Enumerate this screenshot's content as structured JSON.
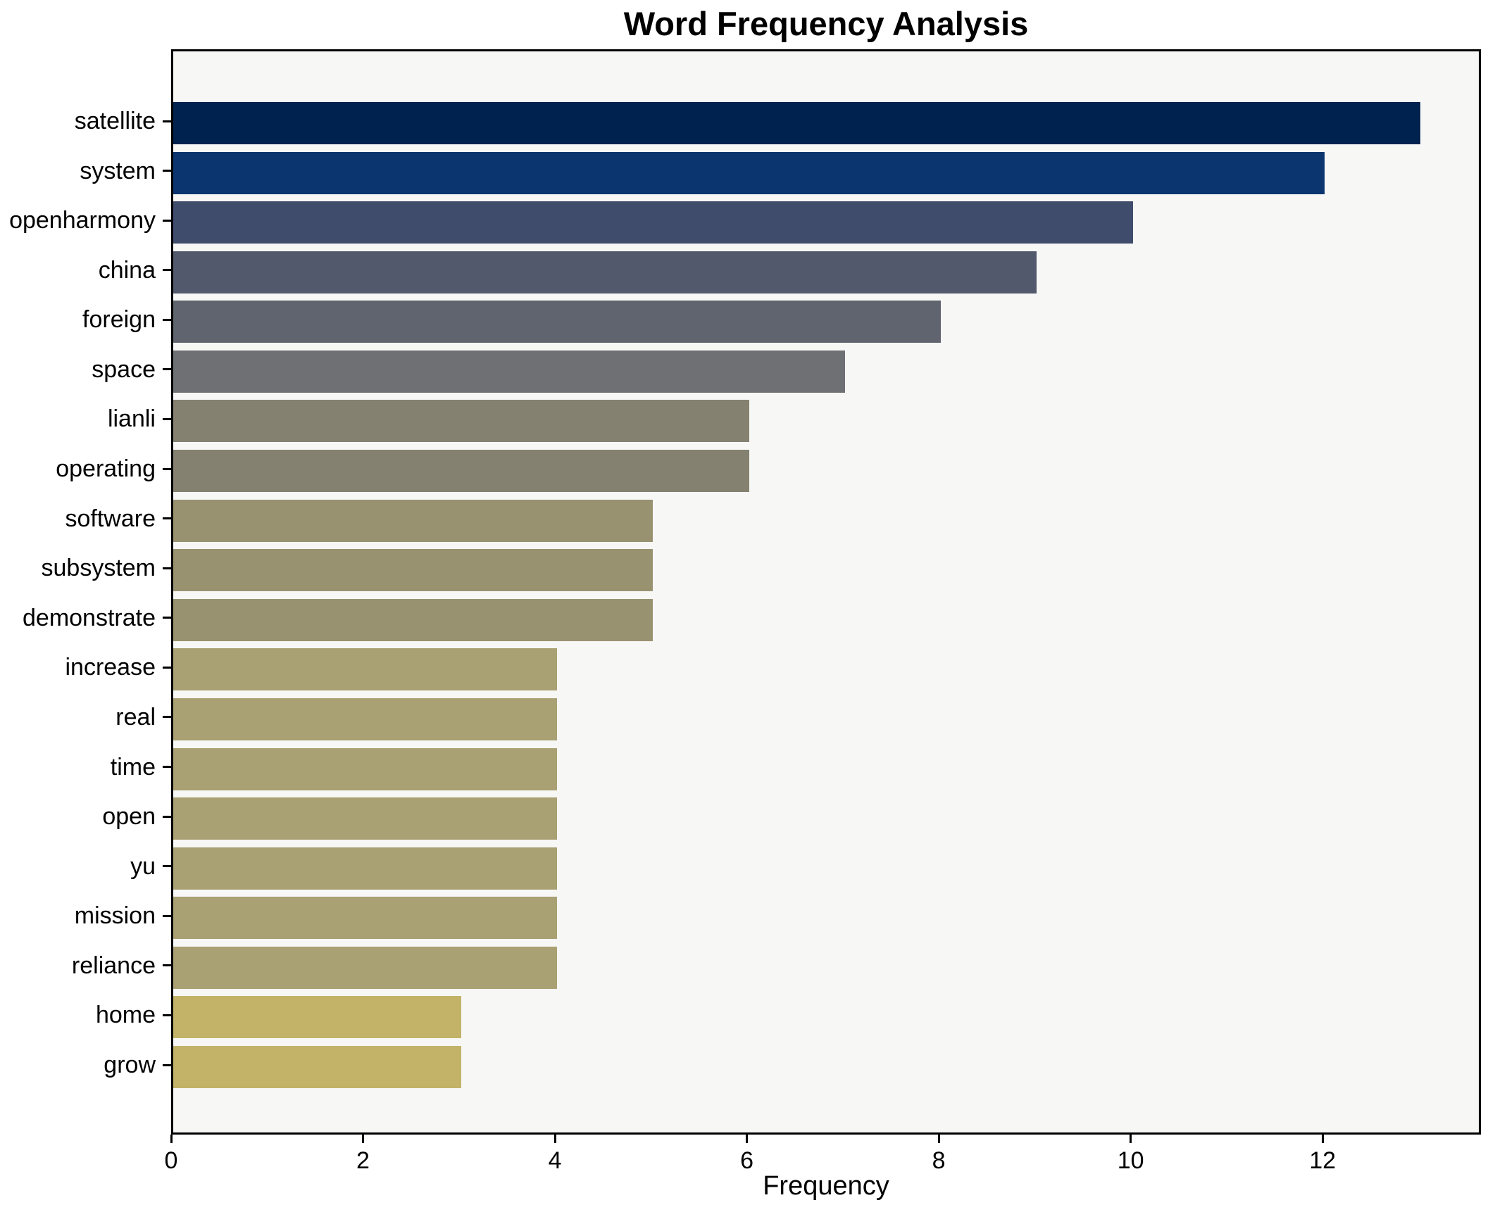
{
  "title": "Word Frequency Analysis",
  "chart_data": {
    "type": "bar",
    "orientation": "horizontal",
    "title": "Word Frequency Analysis",
    "xlabel": "Frequency",
    "ylabel": "",
    "categories": [
      "satellite",
      "system",
      "openharmony",
      "china",
      "foreign",
      "space",
      "lianli",
      "operating",
      "software",
      "subsystem",
      "demonstrate",
      "increase",
      "real",
      "time",
      "open",
      "yu",
      "mission",
      "reliance",
      "home",
      "grow"
    ],
    "values": [
      13,
      12,
      10,
      9,
      8,
      7,
      6,
      6,
      5,
      5,
      5,
      4,
      4,
      4,
      4,
      4,
      4,
      4,
      3,
      3
    ],
    "bar_colors": [
      "#00224e",
      "#0b356f",
      "#3f4c6b",
      "#53596d",
      "#60646e",
      "#6f7073",
      "#848170",
      "#848170",
      "#999271",
      "#999271",
      "#999271",
      "#a9a073",
      "#a9a073",
      "#a9a073",
      "#a9a073",
      "#a9a073",
      "#a9a073",
      "#a9a073",
      "#c2b368",
      "#c2b368"
    ],
    "xlim": [
      0,
      13.65
    ],
    "xticks": [
      0,
      2,
      4,
      6,
      8,
      10,
      12
    ],
    "grid": false,
    "legend": false,
    "plot_background": "#f7f7f6",
    "figure_background": "#ffffff",
    "spine_color": "#000000",
    "colormap": "cividis"
  }
}
